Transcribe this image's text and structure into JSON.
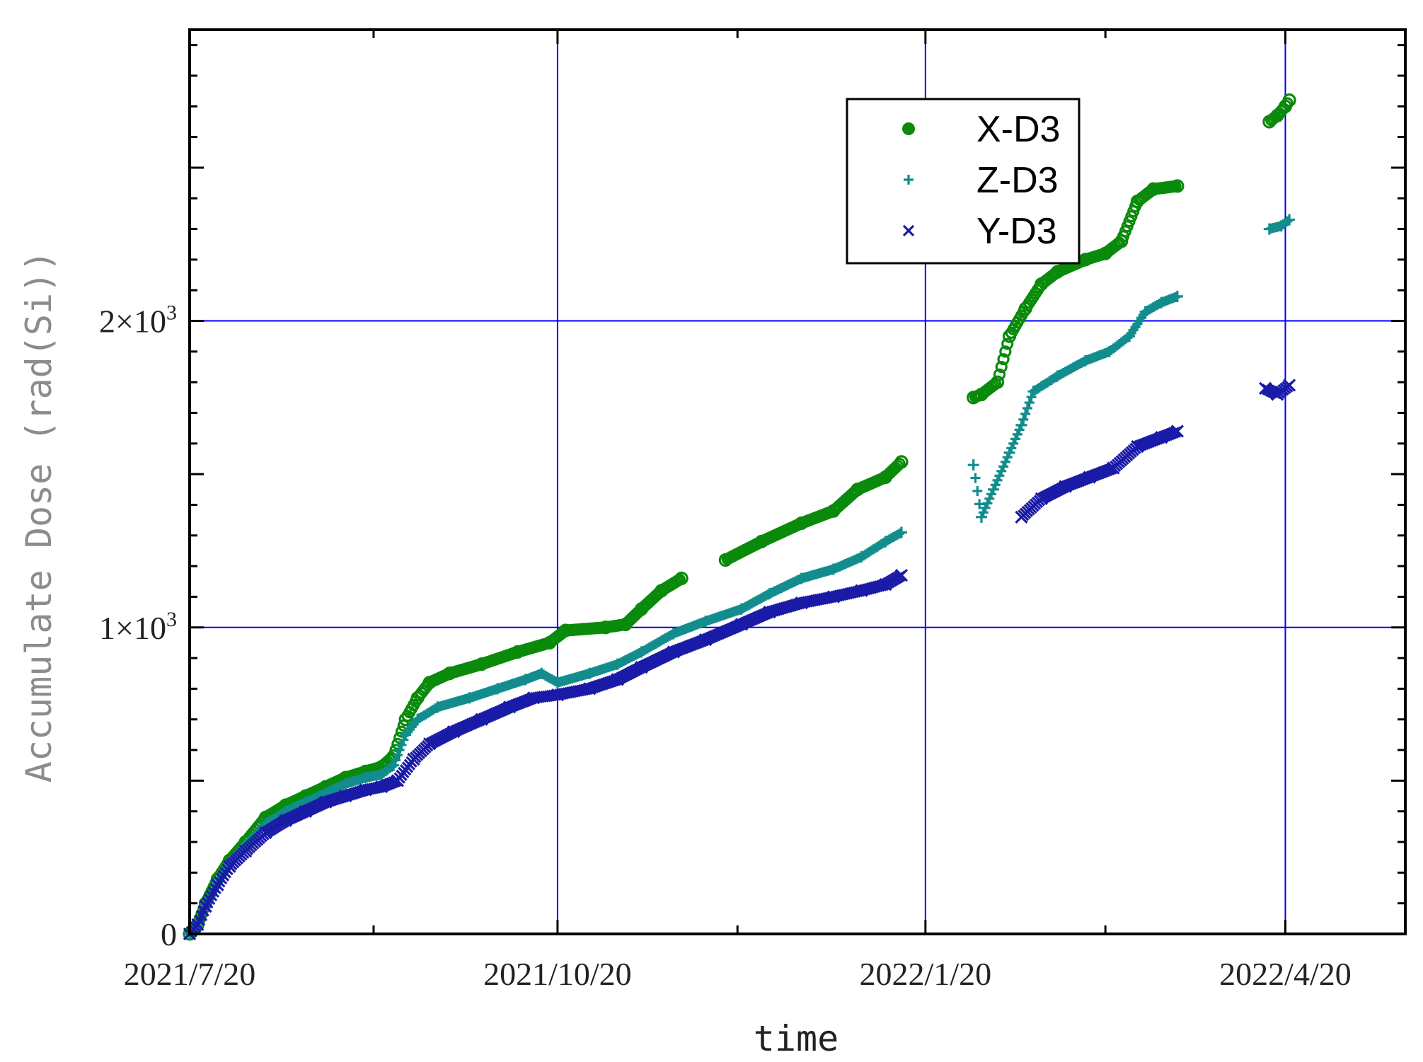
{
  "chart_data": {
    "type": "scatter",
    "xlabel": "time",
    "ylabel": "Accumulate Dose (rad(Si))",
    "x_ticks": [
      "2021/7/20",
      "2021/10/20",
      "2022/1/20",
      "2022/4/20"
    ],
    "y_ticks": [
      {
        "value": 0,
        "base": "0",
        "exp": ""
      },
      {
        "value": 1000,
        "base": "1×10",
        "exp": "3"
      },
      {
        "value": 2000,
        "base": "2×10",
        "exp": "3"
      }
    ],
    "xlim": [
      "2021-07-20",
      "2022-05-20"
    ],
    "ylim": [
      0,
      2950
    ],
    "grid": true,
    "grid_color": "#0000ff",
    "legend_position": "top-right",
    "series": [
      {
        "name": "X-D3",
        "marker": "circle",
        "color": "#0a8a0a",
        "points": [
          [
            "2021-07-20",
            0
          ],
          [
            "2021-07-22",
            30
          ],
          [
            "2021-07-24",
            100
          ],
          [
            "2021-07-27",
            180
          ],
          [
            "2021-07-30",
            240
          ],
          [
            "2021-08-03",
            300
          ],
          [
            "2021-08-08",
            380
          ],
          [
            "2021-08-13",
            420
          ],
          [
            "2021-08-18",
            450
          ],
          [
            "2021-08-23",
            480
          ],
          [
            "2021-08-28",
            510
          ],
          [
            "2021-09-02",
            530
          ],
          [
            "2021-09-06",
            545
          ],
          [
            "2021-09-09",
            580
          ],
          [
            "2021-09-12",
            700
          ],
          [
            "2021-09-15",
            770
          ],
          [
            "2021-09-18",
            820
          ],
          [
            "2021-09-23",
            850
          ],
          [
            "2021-10-01",
            880
          ],
          [
            "2021-10-10",
            920
          ],
          [
            "2021-10-18",
            950
          ],
          [
            "2021-10-22",
            990
          ],
          [
            "2021-11-01",
            1000
          ],
          [
            "2021-11-06",
            1010
          ],
          [
            "2021-11-10",
            1060
          ],
          [
            "2021-11-15",
            1120
          ],
          [
            "2021-11-20",
            1160
          ],
          [
            "2021-12-01",
            1220
          ],
          [
            "2021-12-10",
            1280
          ],
          [
            "2021-12-20",
            1340
          ],
          [
            "2021-12-28",
            1380
          ],
          [
            "2022-01-03",
            1450
          ],
          [
            "2022-01-10",
            1490
          ],
          [
            "2022-01-14",
            1540
          ],
          [
            "2022-02-01",
            1750
          ],
          [
            "2022-02-03",
            1760
          ],
          [
            "2022-02-07",
            1800
          ],
          [
            "2022-02-10",
            1950
          ],
          [
            "2022-02-14",
            2040
          ],
          [
            "2022-02-18",
            2120
          ],
          [
            "2022-02-22",
            2160
          ],
          [
            "2022-03-01",
            2200
          ],
          [
            "2022-03-06",
            2220
          ],
          [
            "2022-03-10",
            2260
          ],
          [
            "2022-03-14",
            2390
          ],
          [
            "2022-03-18",
            2430
          ],
          [
            "2022-03-24",
            2440
          ],
          [
            "2022-04-16",
            2650
          ],
          [
            "2022-04-18",
            2670
          ],
          [
            "2022-04-20",
            2700
          ],
          [
            "2022-04-21",
            2720
          ]
        ]
      },
      {
        "name": "Z-D3",
        "marker": "plus",
        "color": "#128c8c",
        "points": [
          [
            "2021-07-20",
            0
          ],
          [
            "2021-07-22",
            30
          ],
          [
            "2021-07-24",
            100
          ],
          [
            "2021-07-27",
            170
          ],
          [
            "2021-07-30",
            230
          ],
          [
            "2021-08-03",
            290
          ],
          [
            "2021-08-08",
            360
          ],
          [
            "2021-08-13",
            400
          ],
          [
            "2021-08-18",
            430
          ],
          [
            "2021-08-23",
            460
          ],
          [
            "2021-08-28",
            490
          ],
          [
            "2021-09-02",
            510
          ],
          [
            "2021-09-06",
            520
          ],
          [
            "2021-09-09",
            550
          ],
          [
            "2021-09-12",
            650
          ],
          [
            "2021-09-15",
            700
          ],
          [
            "2021-09-20",
            740
          ],
          [
            "2021-09-28",
            770
          ],
          [
            "2021-10-05",
            800
          ],
          [
            "2021-10-12",
            830
          ],
          [
            "2021-10-16",
            850
          ],
          [
            "2021-10-20",
            820
          ],
          [
            "2021-10-28",
            850
          ],
          [
            "2021-11-04",
            880
          ],
          [
            "2021-11-10",
            920
          ],
          [
            "2021-11-18",
            980
          ],
          [
            "2021-11-26",
            1020
          ],
          [
            "2021-12-05",
            1060
          ],
          [
            "2021-12-12",
            1110
          ],
          [
            "2021-12-20",
            1160
          ],
          [
            "2021-12-28",
            1190
          ],
          [
            "2022-01-04",
            1230
          ],
          [
            "2022-01-10",
            1280
          ],
          [
            "2022-01-14",
            1310
          ],
          [
            "2022-02-01",
            1530
          ],
          [
            "2022-02-03",
            1360
          ],
          [
            "2022-02-06",
            1450
          ],
          [
            "2022-02-10",
            1570
          ],
          [
            "2022-02-13",
            1660
          ],
          [
            "2022-02-16",
            1770
          ],
          [
            "2022-02-22",
            1820
          ],
          [
            "2022-03-01",
            1870
          ],
          [
            "2022-03-07",
            1900
          ],
          [
            "2022-03-12",
            1950
          ],
          [
            "2022-03-16",
            2030
          ],
          [
            "2022-03-20",
            2060
          ],
          [
            "2022-03-24",
            2080
          ],
          [
            "2022-04-16",
            2300
          ],
          [
            "2022-04-19",
            2310
          ],
          [
            "2022-04-21",
            2330
          ]
        ]
      },
      {
        "name": "Y-D3",
        "marker": "x",
        "color": "#1a1aa8",
        "points": [
          [
            "2021-07-20",
            0
          ],
          [
            "2021-07-22",
            30
          ],
          [
            "2021-07-24",
            90
          ],
          [
            "2021-07-27",
            160
          ],
          [
            "2021-07-30",
            220
          ],
          [
            "2021-08-03",
            270
          ],
          [
            "2021-08-08",
            330
          ],
          [
            "2021-08-13",
            370
          ],
          [
            "2021-08-18",
            400
          ],
          [
            "2021-08-23",
            430
          ],
          [
            "2021-08-28",
            450
          ],
          [
            "2021-09-02",
            470
          ],
          [
            "2021-09-06",
            480
          ],
          [
            "2021-09-10",
            500
          ],
          [
            "2021-09-14",
            570
          ],
          [
            "2021-09-18",
            620
          ],
          [
            "2021-09-24",
            660
          ],
          [
            "2021-10-01",
            700
          ],
          [
            "2021-10-08",
            740
          ],
          [
            "2021-10-14",
            770
          ],
          [
            "2021-10-20",
            780
          ],
          [
            "2021-10-28",
            800
          ],
          [
            "2021-11-04",
            830
          ],
          [
            "2021-11-10",
            870
          ],
          [
            "2021-11-18",
            920
          ],
          [
            "2021-11-26",
            960
          ],
          [
            "2021-12-05",
            1010
          ],
          [
            "2021-12-12",
            1050
          ],
          [
            "2021-12-20",
            1080
          ],
          [
            "2021-12-28",
            1100
          ],
          [
            "2022-01-04",
            1120
          ],
          [
            "2022-01-10",
            1140
          ],
          [
            "2022-01-14",
            1170
          ],
          [
            "2022-02-13",
            1360
          ],
          [
            "2022-02-18",
            1420
          ],
          [
            "2022-02-24",
            1460
          ],
          [
            "2022-03-02",
            1490
          ],
          [
            "2022-03-08",
            1520
          ],
          [
            "2022-03-14",
            1590
          ],
          [
            "2022-03-20",
            1620
          ],
          [
            "2022-03-24",
            1640
          ],
          [
            "2022-04-15",
            1780
          ],
          [
            "2022-04-18",
            1760
          ],
          [
            "2022-04-21",
            1790
          ]
        ]
      }
    ]
  }
}
